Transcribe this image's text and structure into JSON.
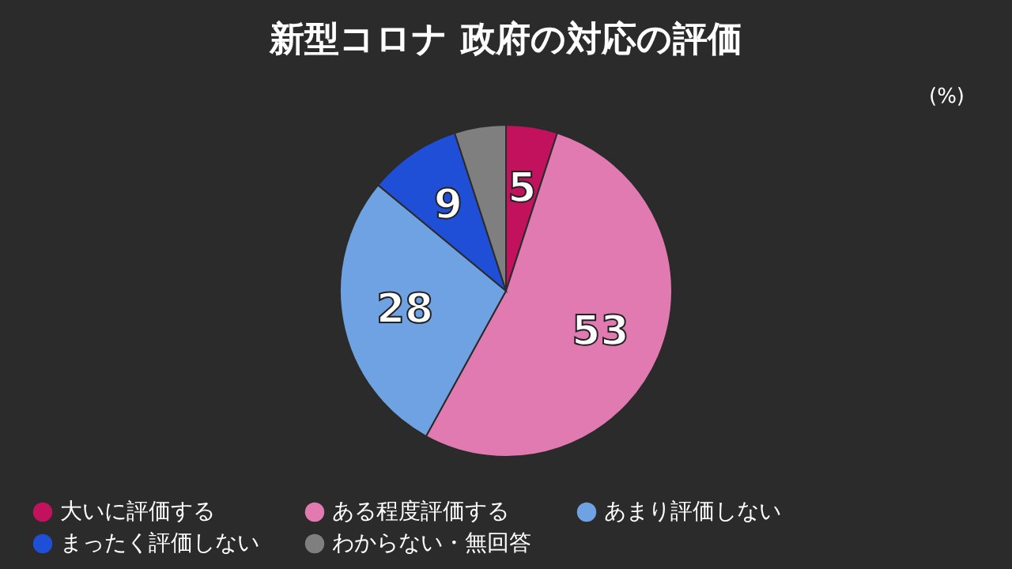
{
  "chart_data": {
    "type": "pie",
    "title": "新型コロナ 政府の対応の評価",
    "categories": [
      "大いに評価する",
      "ある程度評価する",
      "あまり評価しない",
      "まったく評価しない",
      "わからない・無回答"
    ],
    "values": [
      5,
      53,
      28,
      9,
      5
    ],
    "colors": [
      "#c2125e",
      "#e27ab2",
      "#6fa2e2",
      "#1f4fd6",
      "#7f7f7f"
    ],
    "value_labels": [
      "5",
      "53",
      "28",
      "9",
      null
    ],
    "annotations": [
      "(%)"
    ],
    "legend": "bottom"
  }
}
